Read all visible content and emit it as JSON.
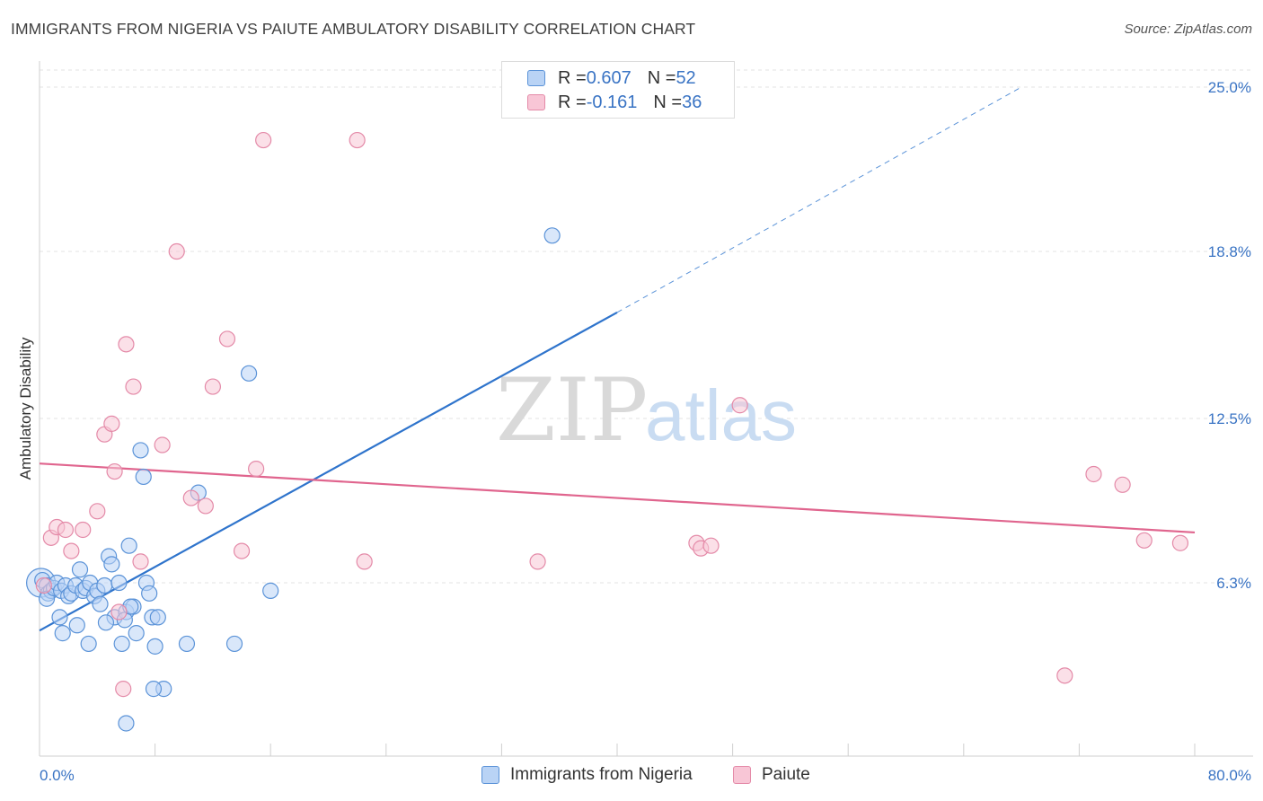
{
  "title": "IMMIGRANTS FROM NIGERIA VS PAIUTE AMBULATORY DISABILITY CORRELATION CHART",
  "source": "Source: ZipAtlas.com",
  "watermark": {
    "zip": "ZIP",
    "atlas": "atlas"
  },
  "colors": {
    "blue_fill": "#b9d3f5",
    "blue_stroke": "#5b93d8",
    "blue_line": "#2f74cc",
    "pink_fill": "#f8c6d6",
    "pink_stroke": "#e48aa8",
    "pink_line": "#e0658e",
    "grid": "#e3e3e3",
    "tick_text": "#3a74c4"
  },
  "legend_top": {
    "rows": [
      {
        "r_label": "R = ",
        "r_value": "0.607",
        "n_label": "N = ",
        "n_value": "52"
      },
      {
        "r_label": "R = ",
        "r_value": "-0.161",
        "n_label": "N = ",
        "n_value": "36"
      }
    ]
  },
  "chart_data": {
    "type": "scatter",
    "title": "IMMIGRANTS FROM NIGERIA VS PAIUTE AMBULATORY DISABILITY CORRELATION CHART",
    "xlabel": "",
    "ylabel": "Ambulatory Disability",
    "xlim": [
      0,
      80
    ],
    "ylim": [
      0,
      26
    ],
    "x_tick_labels": [
      "0.0%",
      "80.0%"
    ],
    "y_ticks": [
      6.3,
      12.5,
      18.8,
      25.0
    ],
    "y_tick_labels": [
      "6.3%",
      "12.5%",
      "18.8%",
      "25.0%"
    ],
    "grid": true,
    "legend_position": "bottom",
    "series": [
      {
        "name": "Immigrants from Nigeria",
        "color": "blue",
        "trend": {
          "x": [
            0,
            40
          ],
          "y": [
            4.5,
            16.5
          ],
          "dashed_to": [
            68,
            25
          ]
        },
        "points": [
          [
            0.2,
            6.4
          ],
          [
            0.5,
            6.2
          ],
          [
            0.6,
            5.9
          ],
          [
            0.8,
            6.0
          ],
          [
            0.5,
            5.7
          ],
          [
            1.0,
            6.1
          ],
          [
            1.2,
            6.3
          ],
          [
            1.5,
            6.0
          ],
          [
            1.8,
            6.2
          ],
          [
            2.0,
            5.8
          ],
          [
            2.2,
            5.9
          ],
          [
            2.5,
            6.2
          ],
          [
            2.8,
            6.8
          ],
          [
            3.0,
            6.0
          ],
          [
            3.2,
            6.1
          ],
          [
            3.5,
            6.3
          ],
          [
            3.8,
            5.8
          ],
          [
            4.0,
            6.0
          ],
          [
            4.2,
            5.5
          ],
          [
            4.5,
            6.2
          ],
          [
            4.8,
            7.3
          ],
          [
            5.0,
            7.0
          ],
          [
            5.2,
            5.0
          ],
          [
            5.5,
            6.3
          ],
          [
            5.7,
            4.0
          ],
          [
            6.0,
            5.2
          ],
          [
            6.2,
            7.7
          ],
          [
            6.5,
            5.4
          ],
          [
            6.7,
            4.4
          ],
          [
            7.0,
            11.3
          ],
          [
            7.2,
            10.3
          ],
          [
            7.4,
            6.3
          ],
          [
            7.6,
            5.9
          ],
          [
            7.8,
            5.0
          ],
          [
            8.0,
            3.9
          ],
          [
            8.2,
            5.0
          ],
          [
            1.4,
            5.0
          ],
          [
            1.6,
            4.4
          ],
          [
            2.6,
            4.7
          ],
          [
            3.4,
            4.0
          ],
          [
            4.6,
            4.8
          ],
          [
            5.9,
            4.9
          ],
          [
            6.3,
            5.4
          ],
          [
            8.6,
            2.3
          ],
          [
            10.2,
            4.0
          ],
          [
            11.0,
            9.7
          ],
          [
            13.5,
            4.0
          ],
          [
            14.5,
            14.2
          ],
          [
            16.0,
            6.0
          ],
          [
            35.5,
            19.4
          ],
          [
            6.0,
            1.0
          ],
          [
            7.9,
            2.3
          ]
        ]
      },
      {
        "name": "Paiute",
        "color": "pink",
        "trend": {
          "x": [
            0,
            80
          ],
          "y": [
            10.8,
            8.2
          ]
        },
        "points": [
          [
            0.3,
            6.2
          ],
          [
            0.8,
            8.0
          ],
          [
            1.2,
            8.4
          ],
          [
            1.8,
            8.3
          ],
          [
            2.2,
            7.5
          ],
          [
            3.0,
            8.3
          ],
          [
            4.0,
            9.0
          ],
          [
            4.5,
            11.9
          ],
          [
            5.0,
            12.3
          ],
          [
            5.2,
            10.5
          ],
          [
            6.0,
            15.3
          ],
          [
            6.5,
            13.7
          ],
          [
            7.0,
            7.1
          ],
          [
            8.5,
            11.5
          ],
          [
            9.5,
            18.8
          ],
          [
            10.5,
            9.5
          ],
          [
            11.5,
            9.2
          ],
          [
            12.0,
            13.7
          ],
          [
            13.0,
            15.5
          ],
          [
            14.0,
            7.5
          ],
          [
            15.0,
            10.6
          ],
          [
            15.5,
            23.0
          ],
          [
            22.0,
            23.0
          ],
          [
            22.5,
            7.1
          ],
          [
            34.5,
            7.1
          ],
          [
            45.5,
            7.8
          ],
          [
            45.8,
            7.6
          ],
          [
            46.5,
            7.7
          ],
          [
            48.5,
            13.0
          ],
          [
            73.0,
            10.4
          ],
          [
            75.0,
            10.0
          ],
          [
            76.5,
            7.9
          ],
          [
            79.0,
            7.8
          ],
          [
            71.0,
            2.8
          ],
          [
            5.5,
            5.2
          ],
          [
            5.8,
            2.3
          ]
        ]
      }
    ]
  },
  "legend_bottom": {
    "items": [
      "Immigrants from Nigeria",
      "Paiute"
    ]
  }
}
